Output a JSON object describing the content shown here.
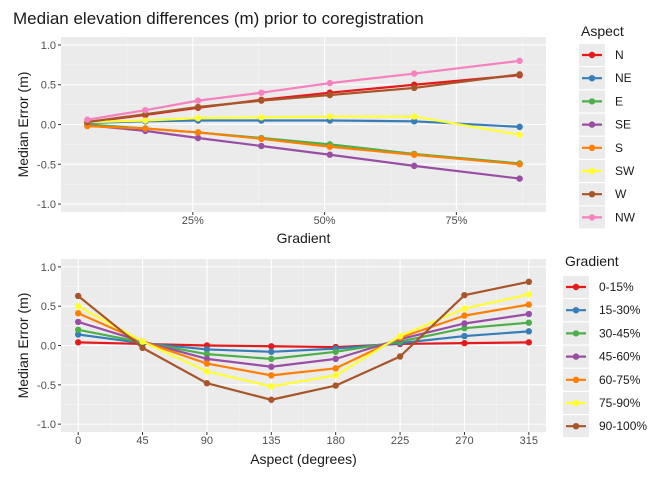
{
  "title": "Median elevation differences (m) prior to coregistration",
  "chart_data": [
    {
      "type": "line",
      "xlabel": "Gradient",
      "ylabel": "Median Error (m)",
      "ylim": [
        -1.1,
        1.1
      ],
      "y_ticks": [
        -1.0,
        -0.5,
        0.0,
        0.5,
        1.0
      ],
      "y_tick_labels": [
        "-1.0",
        "-0.5",
        "0.0",
        "0.5",
        "1.0"
      ],
      "xlim": [
        0.0,
        0.92
      ],
      "x_ticks": [
        0.25,
        0.5,
        0.75
      ],
      "x_tick_labels": [
        "25%",
        "50%",
        "75%"
      ],
      "x": [
        0.05,
        0.16,
        0.26,
        0.38,
        0.51,
        0.67,
        0.87
      ],
      "grid": true,
      "legend_title": "Aspect",
      "legend_position": "right",
      "series": [
        {
          "name": "N",
          "color": "#E41A1C",
          "values": [
            0.03,
            0.12,
            0.21,
            0.31,
            0.4,
            0.5,
            0.62
          ]
        },
        {
          "name": "NE",
          "color": "#377EB8",
          "values": [
            0.02,
            0.04,
            0.05,
            0.05,
            0.05,
            0.04,
            -0.03
          ]
        },
        {
          "name": "E",
          "color": "#4DAF4A",
          "values": [
            0.0,
            -0.05,
            -0.1,
            -0.17,
            -0.25,
            -0.37,
            -0.49
          ]
        },
        {
          "name": "SE",
          "color": "#984EA3",
          "values": [
            -0.01,
            -0.08,
            -0.17,
            -0.27,
            -0.38,
            -0.52,
            -0.68
          ]
        },
        {
          "name": "S",
          "color": "#FF7F00",
          "values": [
            -0.02,
            -0.05,
            -0.1,
            -0.18,
            -0.28,
            -0.38,
            -0.5
          ]
        },
        {
          "name": "SW",
          "color": "#FFFF33",
          "values": [
            0.03,
            0.05,
            0.08,
            0.09,
            0.1,
            0.1,
            -0.13
          ]
        },
        {
          "name": "W",
          "color": "#A65628",
          "values": [
            0.03,
            0.13,
            0.22,
            0.3,
            0.37,
            0.46,
            0.63
          ]
        },
        {
          "name": "NW",
          "color": "#F781BF",
          "values": [
            0.06,
            0.18,
            0.3,
            0.4,
            0.52,
            0.64,
            0.8
          ]
        }
      ]
    },
    {
      "type": "line",
      "xlabel": "Aspect (degrees)",
      "ylabel": "Median Error (m)",
      "ylim": [
        -1.1,
        1.1
      ],
      "y_ticks": [
        -1.0,
        -0.5,
        0.0,
        0.5,
        1.0
      ],
      "y_tick_labels": [
        "-1.0",
        "-0.5",
        "0.0",
        "0.5",
        "1.0"
      ],
      "xlim": [
        -12,
        327
      ],
      "x_ticks": [
        0,
        45,
        90,
        135,
        180,
        225,
        270,
        315
      ],
      "x_tick_labels": [
        "0",
        "45",
        "90",
        "135",
        "180",
        "225",
        "270",
        "315"
      ],
      "x": [
        0,
        45,
        90,
        135,
        180,
        225,
        270,
        315
      ],
      "grid": true,
      "legend_title": "Gradient",
      "legend_position": "right",
      "series": [
        {
          "name": "0-15%",
          "color": "#E41A1C",
          "values": [
            0.04,
            0.02,
            0.0,
            -0.01,
            -0.02,
            0.02,
            0.03,
            0.04
          ]
        },
        {
          "name": "15-30%",
          "color": "#377EB8",
          "values": [
            0.14,
            0.03,
            -0.05,
            -0.08,
            -0.04,
            0.03,
            0.12,
            0.18
          ]
        },
        {
          "name": "30-45%",
          "color": "#4DAF4A",
          "values": [
            0.2,
            0.04,
            -0.11,
            -0.17,
            -0.08,
            0.05,
            0.22,
            0.29
          ]
        },
        {
          "name": "45-60%",
          "color": "#984EA3",
          "values": [
            0.3,
            0.05,
            -0.17,
            -0.27,
            -0.17,
            0.08,
            0.28,
            0.4
          ]
        },
        {
          "name": "60-75%",
          "color": "#FF7F00",
          "values": [
            0.41,
            0.05,
            -0.23,
            -0.38,
            -0.29,
            0.1,
            0.38,
            0.52
          ]
        },
        {
          "name": "75-90%",
          "color": "#FFFF33",
          "values": [
            0.5,
            0.05,
            -0.33,
            -0.52,
            -0.38,
            0.12,
            0.47,
            0.65
          ]
        },
        {
          "name": "90-100%",
          "color": "#A65628",
          "values": [
            0.63,
            -0.03,
            -0.48,
            -0.69,
            -0.51,
            -0.14,
            0.64,
            0.81
          ]
        }
      ]
    }
  ]
}
